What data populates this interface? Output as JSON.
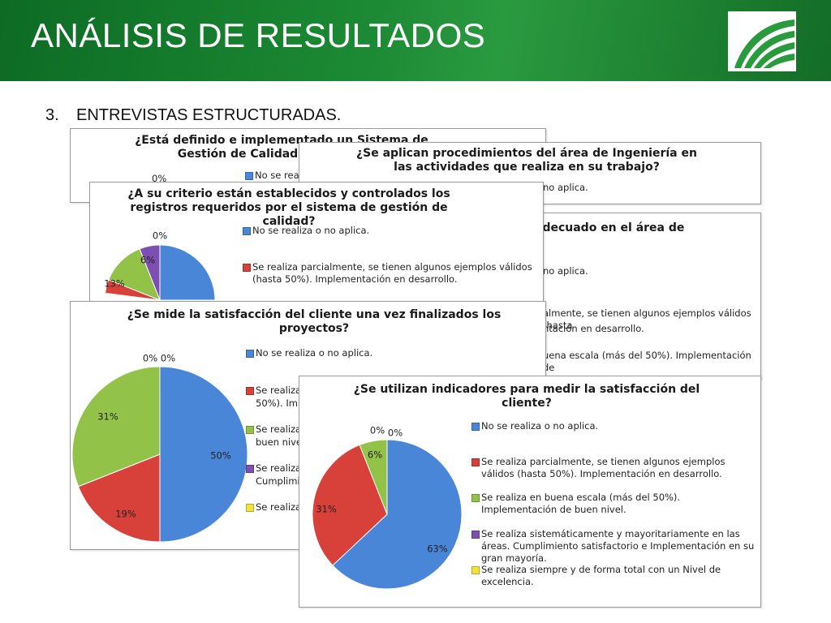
{
  "slide": {
    "title": "ANÁLISIS DE RESULTADOS",
    "list_number": "3.",
    "subtitle": "ENTREVISTAS ESTRUCTURADAS."
  },
  "colors": {
    "header_green": "#1c8a34",
    "series": [
      "#4a86d8",
      "#d8403a",
      "#93c248",
      "#7c4fb0",
      "#f2e33a"
    ]
  },
  "legend_labels": [
    "No se realiza o no aplica.",
    "Se realiza parcialmente, se tienen algunos ejemplos válidos (hasta 50%). Implementación en desarrollo.",
    "Se realiza en buena escala (más del 50%). Implementación de buen nivel.",
    "Se realiza sistemáticamente y mayoritariamente en las áreas. Cumplimiento satisfactorio e Implementación en su gran mayoría.",
    "Se realiza siempre y de forma total con un Nivel de excelencia."
  ],
  "cards": {
    "c1": {
      "title": "¿Está definido e implementado un Sistema de Gestión de Calidad en el área de",
      "legend": [
        "No se reali"
      ],
      "labels": [
        "0%"
      ]
    },
    "c2": {
      "title": "¿Se aplican procedimientos del área de Ingeniería en las actividades que realiza en su trabajo?",
      "legend": [
        "no aplica."
      ]
    },
    "c3": {
      "title": "adecuado en el área de",
      "legend": [
        "no aplica.",
        "almente, se tienen algunos ejemplos válidos (hasta",
        "ntación en desarrollo.",
        "uena escala (más del 50%). Implementación de"
      ]
    },
    "c4": {
      "title": "¿A su criterio están establecidos y controlados los registros requeridos por el sistema de gestión de calidad?",
      "legend": [
        "No se realiza o no aplica.",
        "Se realiza parcialmente, se tienen algunos ejemplos válidos (hasta 50%). Implementación en desarrollo."
      ]
    },
    "c5": {
      "title": "¿Se mide la satisfacción del cliente una vez finalizados los proyectos?",
      "legend": [
        "No se realiza o no aplica.",
        "Se realiza",
        "50%). Imp",
        "Se realiza",
        "buen nive",
        "Se realiza",
        "Cumplimie",
        "Se realiza"
      ]
    },
    "c6": {
      "title": "¿Se utilizan indicadores para medir la satisfacción del cliente?"
    }
  },
  "chart_data": [
    {
      "type": "pie",
      "title": "¿A su criterio están establecidos y controlados los registros requeridos por el sistema de gestión de calidad?",
      "categories": [
        "No se realiza o no aplica.",
        "Se realiza parcialmente, se tienen algunos ejemplos válidos (hasta 50%). Implementación en desarrollo.",
        "Se realiza en buena escala (más del 50%). Implementación de buen nivel.",
        "Se realiza sistemáticamente y mayoritariamente en las áreas. Cumplimiento satisfactorio e Implementación en su gran mayoría.",
        "Se realiza siempre y de forma total con un Nivel de excelencia."
      ],
      "values": [
        null,
        null,
        13,
        6,
        0
      ],
      "value_labels": [
        "",
        "",
        "13%",
        "6%",
        "0%"
      ],
      "note": "partially occluded"
    },
    {
      "type": "pie",
      "title": "¿Se mide la satisfacción del cliente una vez finalizados los proyectos?",
      "categories": [
        "No se realiza o no aplica.",
        "Se realiza parcialmente, se tienen algunos ejemplos válidos (hasta 50%). Implementación en desarrollo.",
        "Se realiza en buena escala (más del 50%). Implementación de buen nivel.",
        "Se realiza sistemáticamente y mayoritariamente en las áreas. Cumplimiento satisfactorio e Implementación en su gran mayoría.",
        "Se realiza siempre y de forma total con un Nivel de excelencia."
      ],
      "values": [
        50,
        19,
        31,
        0,
        0
      ],
      "value_labels": [
        "50%",
        "19%",
        "31%",
        "0%",
        "0%"
      ]
    },
    {
      "type": "pie",
      "title": "¿Se utilizan indicadores para medir la satisfacción del cliente?",
      "categories": [
        "No se realiza o no aplica.",
        "Se realiza parcialmente, se tienen algunos ejemplos válidos (hasta 50%). Implementación en desarrollo.",
        "Se realiza en buena escala (más del 50%). Implementación de buen nivel.",
        "Se realiza sistemáticamente y mayoritariamente en las áreas. Cumplimiento satisfactorio e Implementación en su gran mayoría.",
        "Se realiza siempre y de forma total con un Nivel de excelencia."
      ],
      "values": [
        63,
        31,
        6,
        0,
        0
      ],
      "value_labels": [
        "63%",
        "31%",
        "6%",
        "0%",
        "0%"
      ]
    }
  ]
}
